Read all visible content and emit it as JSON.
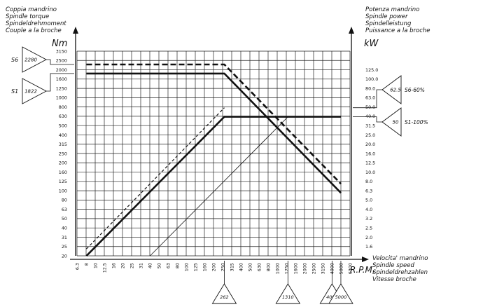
{
  "chart_data": {
    "type": "line",
    "left_axis": {
      "title_lines": [
        "Coppia mandrino",
        "Spindle torque",
        "Spindeldrehmoment",
        "Couple a la broche"
      ],
      "unit": "Nm",
      "ticks": [
        "20",
        "25",
        "31",
        "40",
        "50",
        "63",
        "80",
        "100",
        "125",
        "160",
        "200",
        "250",
        "315",
        "400",
        "500",
        "630",
        "800",
        "1000",
        "1250",
        "1600",
        "2000",
        "2500",
        "3150"
      ],
      "badges": [
        {
          "mode": "S6",
          "value": "2280",
          "target": 2280
        },
        {
          "mode": "S1",
          "value": "1822",
          "target": 1822
        }
      ]
    },
    "right_axis": {
      "title_lines": [
        "Potenza mandrino",
        "Spindle power",
        "Spindelleistung",
        "Puissance a la broche"
      ],
      "unit": "kW",
      "ticks": [
        "1.6",
        "2.0",
        "2.5",
        "3.2",
        "4.0",
        "5.0",
        "6.3",
        "8.0",
        "10.0",
        "12.5",
        "16.0",
        "20.0",
        "25.0",
        "31.5",
        "40.0",
        "50.0",
        "63.0",
        "80.0",
        "100.0",
        "125.0"
      ],
      "badges": [
        {
          "value": "62.5",
          "label": "S6-60%",
          "target": 62.5
        },
        {
          "value": "50",
          "label": "S1-100%",
          "target": 50
        }
      ]
    },
    "x_axis": {
      "title_lines": [
        "Velocita' mandrino",
        "Spindle speed",
        "Spindeldrehzahlen",
        "Vitesse broche"
      ],
      "unit": "R.P.M.",
      "ticks": [
        "6.3",
        "8",
        "10",
        "12.5",
        "16",
        "20",
        "25",
        "31",
        "40",
        "50",
        "63",
        "80",
        "100",
        "125",
        "160",
        "200",
        "250",
        "315",
        "400",
        "500",
        "630",
        "800",
        "1000",
        "1250",
        "1600",
        "2000",
        "2500",
        "3150",
        "4000",
        "5000",
        "6300"
      ],
      "badges": [
        {
          "value": "262",
          "target": 262
        },
        {
          "value": "1310",
          "target": 1310
        },
        {
          "value": "4000",
          "target": 4000
        },
        {
          "value": "5000",
          "target": 5000
        }
      ]
    },
    "series": [
      {
        "type": "torque",
        "mode": "S6",
        "dashed": true,
        "x": [
          8,
          262,
          5000
        ],
        "y": [
          2280,
          2280,
          119
        ]
      },
      {
        "type": "torque",
        "mode": "S1",
        "dashed": false,
        "x": [
          8,
          262,
          5000
        ],
        "y": [
          1822,
          1822,
          95
        ]
      },
      {
        "type": "power",
        "mode": "S6",
        "dashed": true,
        "x": [
          8,
          262
        ],
        "y": [
          1.9,
          62.5
        ]
      },
      {
        "type": "power",
        "mode": "S1",
        "dashed": false,
        "x": [
          8,
          262,
          5000
        ],
        "y": [
          1.6,
          50,
          50
        ]
      },
      {
        "type": "power",
        "mode": "reference",
        "dashed": false,
        "thin": true,
        "x": [
          40,
          1310
        ],
        "y": [
          1.6,
          50
        ]
      }
    ]
  }
}
